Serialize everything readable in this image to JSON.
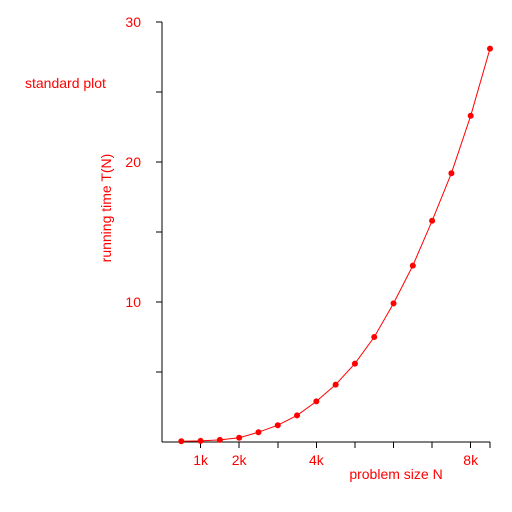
{
  "chart_data": {
    "type": "line",
    "title": "standard plot",
    "xlabel": "problem size N",
    "ylabel": "running time T(N)",
    "xlim": [
      0,
      8500
    ],
    "ylim": [
      0,
      30
    ],
    "x_tick_values": [
      1000,
      2000,
      3000,
      4000,
      5000,
      6000,
      7000,
      8000
    ],
    "x_tick_labels": [
      "1k",
      "2k",
      "",
      "4k",
      "",
      "",
      "",
      "8k"
    ],
    "y_tick_values": [
      5,
      10,
      15,
      20,
      25,
      30
    ],
    "y_tick_labels": [
      "",
      "10",
      "",
      "20",
      "",
      "30"
    ],
    "grid": false,
    "legend": "none",
    "series": [
      {
        "color": "#ff0000",
        "x": [
          500,
          1000,
          1500,
          2000,
          2500,
          3000,
          3500,
          4000,
          4500,
          5000,
          5500,
          6000,
          6500,
          7000,
          7500,
          8000,
          8500
        ],
        "y": [
          0.05,
          0.08,
          0.15,
          0.3,
          0.7,
          1.2,
          1.9,
          2.9,
          4.1,
          5.6,
          7.5,
          9.9,
          12.6,
          15.8,
          19.2,
          23.3,
          28.1
        ]
      }
    ]
  }
}
